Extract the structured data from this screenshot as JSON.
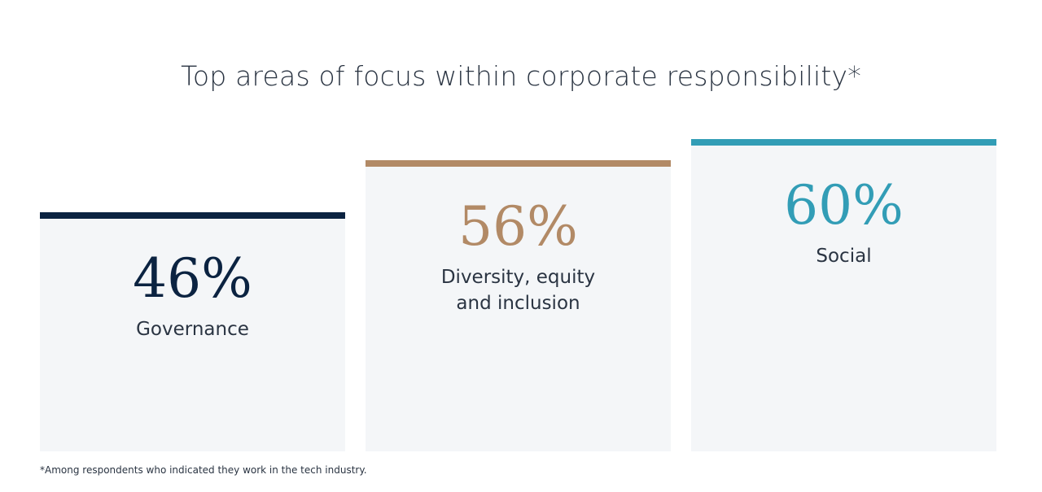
{
  "chart_data": {
    "type": "bar",
    "title": "Top areas of focus within corporate responsibility*",
    "categories": [
      "Governance",
      "Diversity, equity and inclusion",
      "Social"
    ],
    "values": [
      46,
      56,
      60
    ],
    "value_labels": [
      "46%",
      "56%",
      "60%"
    ],
    "colors": [
      "#0b2341",
      "#b28a66",
      "#329db6"
    ],
    "footnote": "*Among respondents who indicated they work in the tech industry."
  }
}
